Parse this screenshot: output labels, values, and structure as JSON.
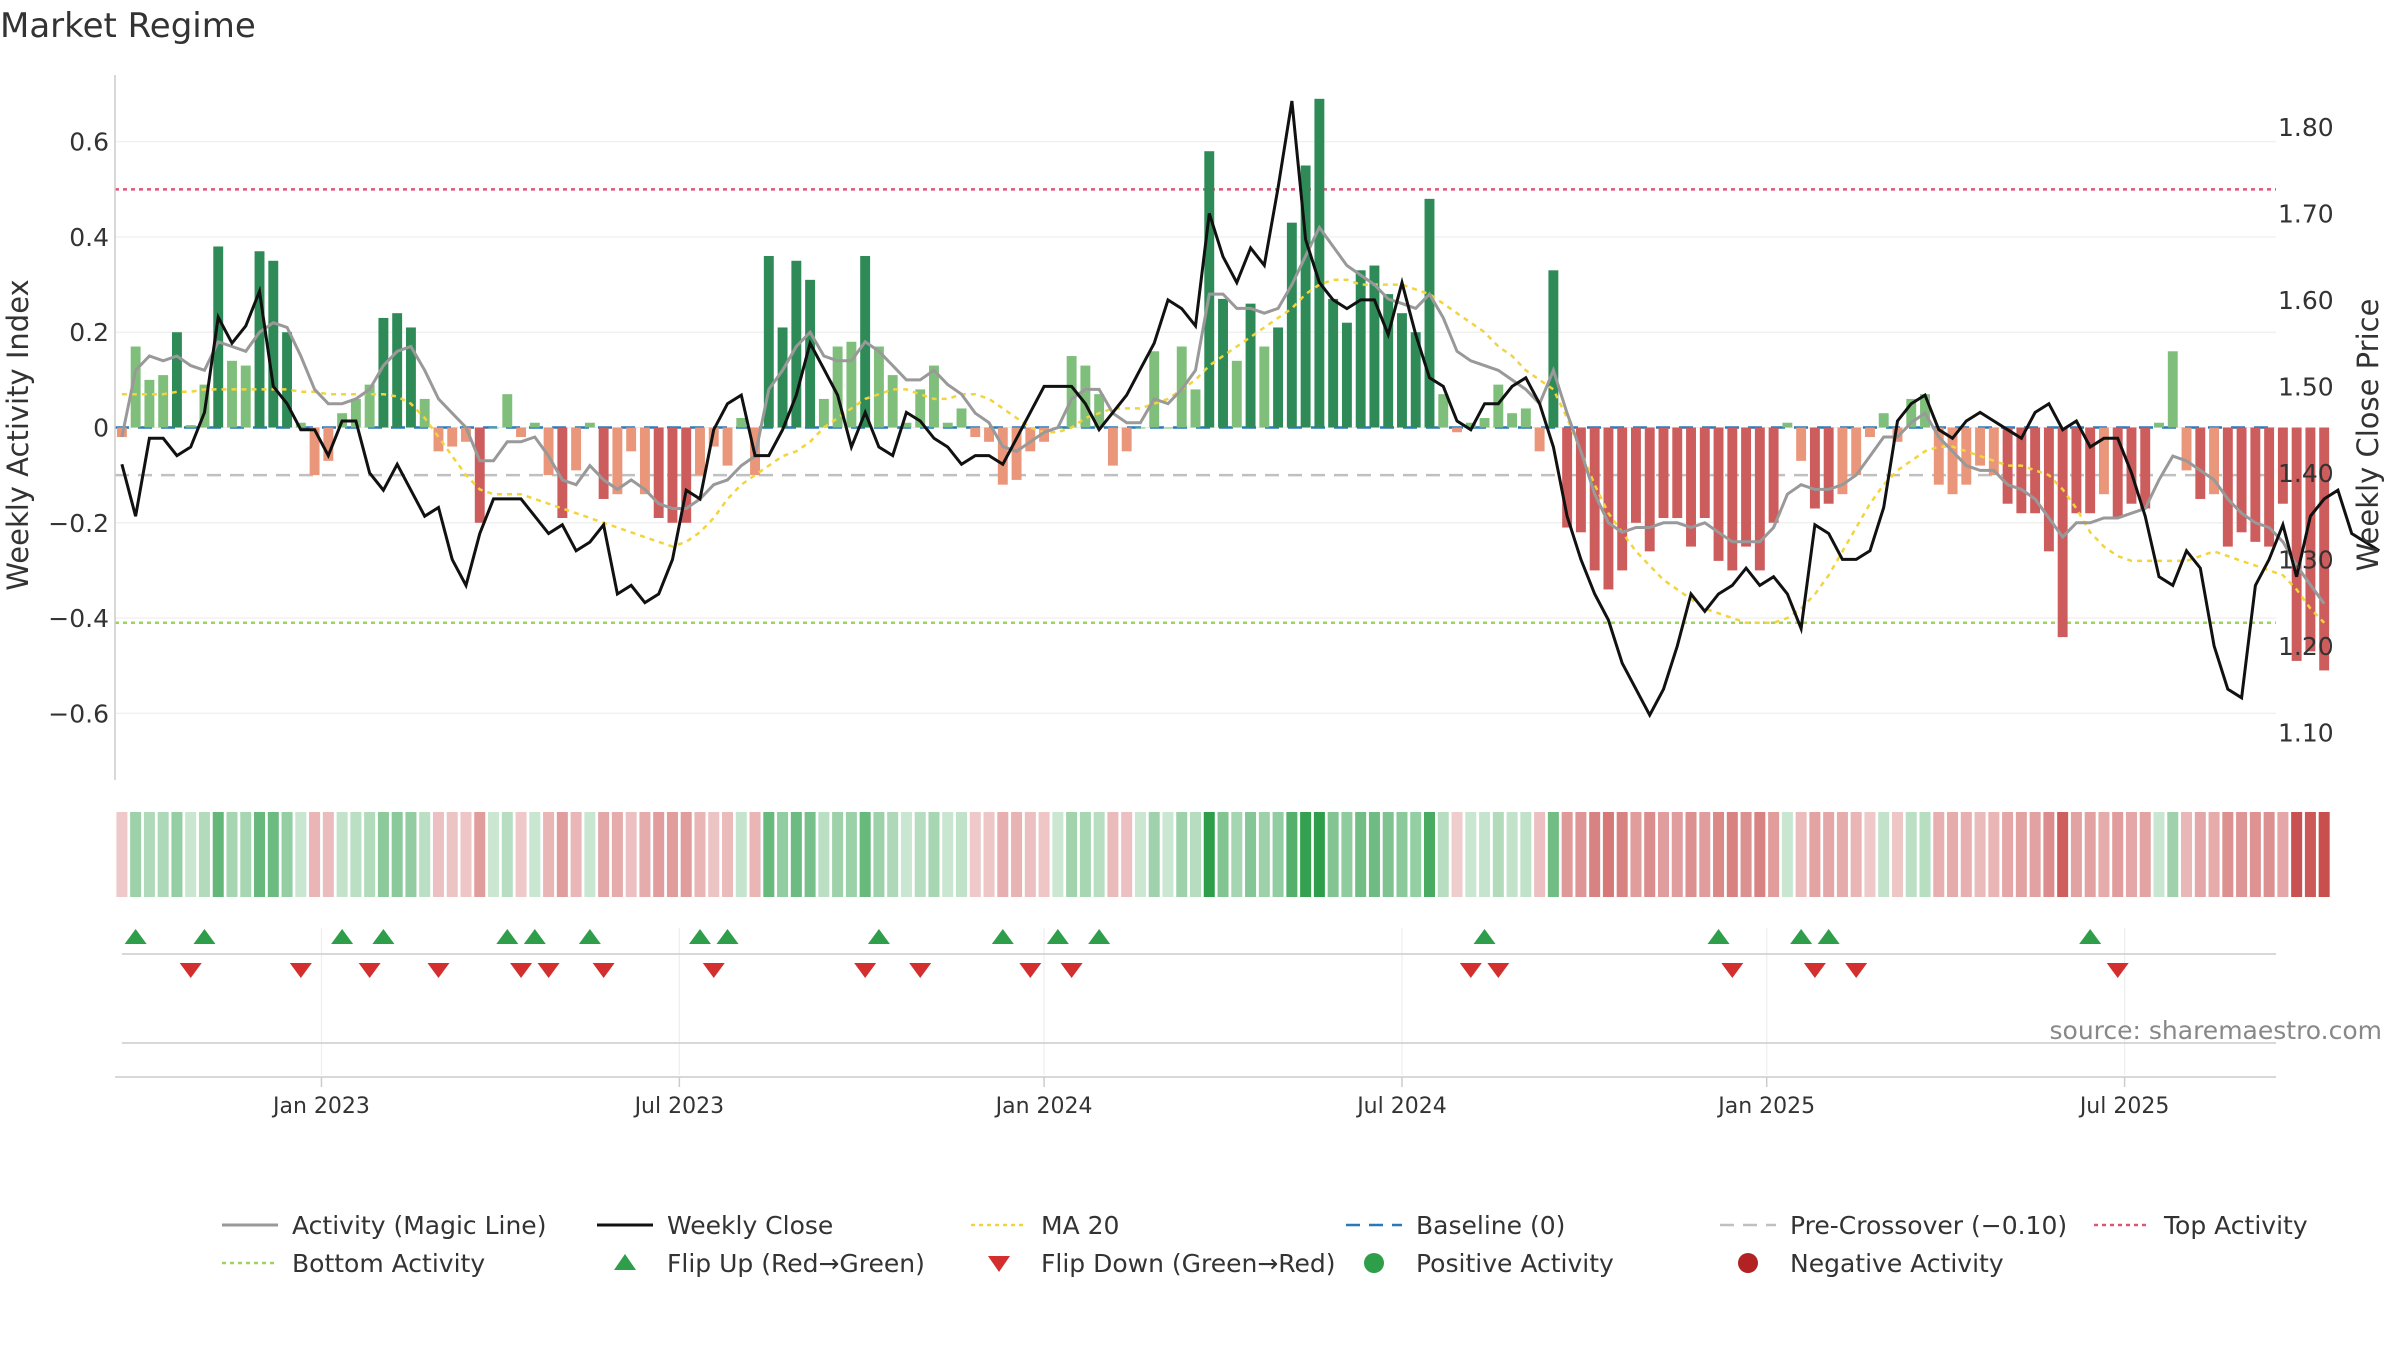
{
  "chart_data": {
    "type": "bar",
    "title": "Market Regime",
    "ylabel": "Weekly Activity Index",
    "y2label": "Weekly Close Price",
    "ylim": [
      -0.74,
      0.74
    ],
    "y2lim": [
      1.045,
      1.86
    ],
    "yticks": [
      0.6,
      0.4,
      0.2,
      0,
      -0.2,
      -0.4,
      -0.6
    ],
    "ytick_labels": [
      "0.6",
      "0.4",
      "0.2",
      "0",
      "−0.2",
      "−0.4",
      "−0.6"
    ],
    "y2ticks": [
      1.8,
      1.7,
      1.6,
      1.5,
      1.4,
      1.3,
      1.2,
      1.1
    ],
    "y2tick_labels": [
      "1.80",
      "1.70",
      "1.60",
      "1.50",
      "1.40",
      "1.30",
      "1.20",
      "1.10"
    ],
    "xlim": [
      0,
      157
    ],
    "xticks": [
      15,
      41,
      67.5,
      93.5,
      120,
      146
    ],
    "xtick_labels": [
      "Jan 2023",
      "Jul 2023",
      "Jan 2024",
      "Jul 2024",
      "Jan 2025",
      "Jul 2025"
    ],
    "grid": true,
    "legend_position": "bottom",
    "source_text": "source: sharemaestro.com",
    "reference_lines": {
      "top_activity": 0.5,
      "bottom_activity": -0.41,
      "pre_crossover": -0.1,
      "baseline": 0
    },
    "activity": [
      -0.02,
      0.17,
      0.1,
      0.11,
      0.2,
      0.005,
      0.09,
      0.38,
      0.14,
      0.13,
      0.37,
      0.35,
      0.2,
      0.01,
      -0.1,
      -0.07,
      0.03,
      0.06,
      0.09,
      0.23,
      0.24,
      0.21,
      0.06,
      -0.05,
      -0.04,
      -0.03,
      -0.2,
      0.0,
      0.07,
      -0.02,
      0.01,
      -0.1,
      -0.19,
      -0.09,
      0.01,
      -0.15,
      -0.14,
      -0.05,
      -0.14,
      -0.19,
      -0.2,
      -0.2,
      -0.1,
      -0.04,
      -0.08,
      0.02,
      -0.1,
      0.36,
      0.21,
      0.35,
      0.31,
      0.06,
      0.17,
      0.18,
      0.36,
      0.17,
      0.11,
      0.01,
      0.08,
      0.13,
      0.01,
      0.04,
      -0.02,
      -0.03,
      -0.12,
      -0.11,
      -0.05,
      -0.03,
      0.0,
      0.15,
      0.13,
      0.07,
      -0.08,
      -0.05,
      0.0,
      0.16,
      0.0,
      0.17,
      0.08,
      0.58,
      0.27,
      0.14,
      0.26,
      0.17,
      0.21,
      0.43,
      0.55,
      0.69,
      0.27,
      0.22,
      0.33,
      0.34,
      0.28,
      0.24,
      0.2,
      0.48,
      0.07,
      -0.01,
      0.01,
      0.02,
      0.09,
      0.03,
      0.04,
      -0.05,
      0.33,
      -0.21,
      -0.22,
      -0.3,
      -0.34,
      -0.3,
      -0.2,
      -0.26,
      -0.19,
      -0.19,
      -0.25,
      -0.19,
      -0.28,
      -0.3,
      -0.25,
      -0.3,
      -0.2,
      0.01,
      -0.07,
      -0.17,
      -0.16,
      -0.14,
      -0.1,
      -0.02,
      0.03,
      -0.03,
      0.06,
      0.07,
      -0.12,
      -0.14,
      -0.12,
      -0.08,
      -0.1,
      -0.16,
      -0.18,
      -0.18,
      -0.26,
      -0.44,
      -0.18,
      -0.18,
      -0.14,
      -0.19,
      -0.16,
      -0.17,
      0.01,
      0.16,
      -0.09,
      -0.15,
      -0.14,
      -0.25,
      -0.22,
      -0.24,
      -0.25,
      -0.16,
      -0.49,
      -0.47,
      -0.51
    ],
    "close": [
      1.41,
      1.35,
      1.44,
      1.44,
      1.42,
      1.43,
      1.47,
      1.58,
      1.55,
      1.57,
      1.61,
      1.5,
      1.48,
      1.45,
      1.45,
      1.42,
      1.46,
      1.46,
      1.4,
      1.38,
      1.41,
      1.38,
      1.35,
      1.36,
      1.3,
      1.27,
      1.33,
      1.37,
      1.37,
      1.37,
      1.35,
      1.33,
      1.34,
      1.31,
      1.32,
      1.34,
      1.26,
      1.27,
      1.25,
      1.26,
      1.3,
      1.38,
      1.37,
      1.45,
      1.48,
      1.49,
      1.42,
      1.42,
      1.45,
      1.49,
      1.55,
      1.52,
      1.49,
      1.43,
      1.47,
      1.43,
      1.42,
      1.47,
      1.46,
      1.44,
      1.43,
      1.41,
      1.42,
      1.42,
      1.41,
      1.44,
      1.47,
      1.5,
      1.5,
      1.5,
      1.48,
      1.45,
      1.47,
      1.49,
      1.52,
      1.55,
      1.6,
      1.59,
      1.57,
      1.7,
      1.65,
      1.62,
      1.66,
      1.64,
      1.73,
      1.83,
      1.67,
      1.62,
      1.6,
      1.59,
      1.6,
      1.6,
      1.56,
      1.62,
      1.56,
      1.51,
      1.5,
      1.46,
      1.45,
      1.48,
      1.48,
      1.5,
      1.51,
      1.48,
      1.43,
      1.35,
      1.3,
      1.26,
      1.23,
      1.18,
      1.15,
      1.12,
      1.15,
      1.2,
      1.26,
      1.24,
      1.26,
      1.27,
      1.29,
      1.27,
      1.28,
      1.26,
      1.22,
      1.34,
      1.33,
      1.3,
      1.3,
      1.31,
      1.36,
      1.46,
      1.48,
      1.49,
      1.45,
      1.44,
      1.46,
      1.47,
      1.46,
      1.45,
      1.44,
      1.47,
      1.48,
      1.45,
      1.46,
      1.43,
      1.44,
      1.44,
      1.4,
      1.35,
      1.28,
      1.27,
      1.31,
      1.29,
      1.2,
      1.15,
      1.14,
      1.27,
      1.3,
      1.34,
      1.28,
      1.35,
      1.37,
      1.38,
      1.33,
      1.32,
      1.31
    ],
    "magic_line": [
      -0.02,
      0.12,
      0.15,
      0.14,
      0.15,
      0.13,
      0.12,
      0.18,
      0.17,
      0.16,
      0.2,
      0.22,
      0.21,
      0.15,
      0.08,
      0.05,
      0.05,
      0.06,
      0.08,
      0.13,
      0.16,
      0.17,
      0.12,
      0.06,
      0.03,
      0.0,
      -0.07,
      -0.07,
      -0.03,
      -0.03,
      -0.02,
      -0.06,
      -0.11,
      -0.12,
      -0.08,
      -0.11,
      -0.13,
      -0.11,
      -0.13,
      -0.16,
      -0.17,
      -0.17,
      -0.15,
      -0.12,
      -0.11,
      -0.08,
      -0.06,
      0.08,
      0.12,
      0.17,
      0.2,
      0.15,
      0.14,
      0.14,
      0.18,
      0.16,
      0.13,
      0.1,
      0.1,
      0.12,
      0.09,
      0.07,
      0.03,
      0.01,
      -0.04,
      -0.05,
      -0.03,
      -0.01,
      0.0,
      0.06,
      0.08,
      0.08,
      0.03,
      0.01,
      0.01,
      0.06,
      0.05,
      0.08,
      0.12,
      0.28,
      0.28,
      0.25,
      0.25,
      0.24,
      0.25,
      0.3,
      0.36,
      0.42,
      0.38,
      0.34,
      0.32,
      0.3,
      0.27,
      0.26,
      0.25,
      0.28,
      0.23,
      0.16,
      0.14,
      0.13,
      0.12,
      0.1,
      0.08,
      0.05,
      0.12,
      0.03,
      -0.05,
      -0.14,
      -0.2,
      -0.22,
      -0.21,
      -0.21,
      -0.2,
      -0.2,
      -0.21,
      -0.2,
      -0.22,
      -0.24,
      -0.24,
      -0.24,
      -0.21,
      -0.14,
      -0.12,
      -0.13,
      -0.13,
      -0.12,
      -0.1,
      -0.06,
      -0.02,
      -0.02,
      0.01,
      0.03,
      -0.02,
      -0.05,
      -0.08,
      -0.09,
      -0.09,
      -0.12,
      -0.13,
      -0.15,
      -0.19,
      -0.23,
      -0.2,
      -0.2,
      -0.19,
      -0.19,
      -0.18,
      -0.17,
      -0.11,
      -0.06,
      -0.07,
      -0.09,
      -0.11,
      -0.15,
      -0.18,
      -0.2,
      -0.21,
      -0.24,
      -0.29,
      -0.33,
      -0.37
    ],
    "ma20": [
      0.07,
      0.07,
      0.07,
      0.07,
      0.075,
      0.075,
      0.08,
      0.08,
      0.08,
      0.08,
      0.08,
      0.08,
      0.08,
      0.075,
      0.075,
      0.07,
      0.07,
      0.07,
      0.07,
      0.07,
      0.065,
      0.05,
      0.02,
      -0.02,
      -0.06,
      -0.1,
      -0.13,
      -0.14,
      -0.14,
      -0.14,
      -0.15,
      -0.16,
      -0.17,
      -0.18,
      -0.19,
      -0.2,
      -0.21,
      -0.22,
      -0.23,
      -0.24,
      -0.25,
      -0.24,
      -0.22,
      -0.19,
      -0.15,
      -0.12,
      -0.1,
      -0.08,
      -0.06,
      -0.05,
      -0.03,
      0.0,
      0.02,
      0.04,
      0.06,
      0.07,
      0.08,
      0.08,
      0.07,
      0.06,
      0.06,
      0.07,
      0.07,
      0.06,
      0.04,
      0.02,
      0.0,
      -0.01,
      -0.01,
      0.0,
      0.02,
      0.03,
      0.04,
      0.04,
      0.04,
      0.05,
      0.06,
      0.08,
      0.1,
      0.13,
      0.15,
      0.17,
      0.19,
      0.21,
      0.23,
      0.25,
      0.28,
      0.3,
      0.31,
      0.31,
      0.3,
      0.3,
      0.3,
      0.3,
      0.29,
      0.28,
      0.26,
      0.24,
      0.22,
      0.2,
      0.17,
      0.15,
      0.12,
      0.1,
      0.08,
      0.02,
      -0.05,
      -0.12,
      -0.18,
      -0.22,
      -0.26,
      -0.29,
      -0.32,
      -0.34,
      -0.36,
      -0.38,
      -0.39,
      -0.4,
      -0.41,
      -0.41,
      -0.41,
      -0.4,
      -0.38,
      -0.35,
      -0.31,
      -0.26,
      -0.21,
      -0.16,
      -0.12,
      -0.09,
      -0.07,
      -0.05,
      -0.04,
      -0.04,
      -0.05,
      -0.06,
      -0.07,
      -0.08,
      -0.08,
      -0.09,
      -0.1,
      -0.13,
      -0.17,
      -0.22,
      -0.25,
      -0.27,
      -0.28,
      -0.28,
      -0.28,
      -0.28,
      -0.28,
      -0.27,
      -0.26,
      -0.27,
      -0.28,
      -0.29,
      -0.3,
      -0.31,
      -0.34,
      -0.38,
      -0.41
    ],
    "flip_up": [
      1,
      6,
      16,
      19,
      28,
      30,
      34,
      42,
      44,
      55,
      64,
      68,
      71,
      99,
      116,
      122,
      124,
      143
    ],
    "flip_down": [
      5,
      13,
      18,
      23,
      29,
      31,
      35,
      43,
      54,
      58,
      66,
      69,
      98,
      100,
      117,
      123,
      126,
      145
    ],
    "legend": [
      {
        "label": "Activity (Magic Line)",
        "kind": "line",
        "color": "#999999"
      },
      {
        "label": "Weekly Close",
        "kind": "line",
        "color": "#111111"
      },
      {
        "label": "MA 20",
        "kind": "dotted",
        "color": "#f2d43d"
      },
      {
        "label": "Baseline (0)",
        "kind": "dashed",
        "color": "#2a78b8"
      },
      {
        "label": "Pre-Crossover (−0.10)",
        "kind": "dashed",
        "color": "#c0c0c0"
      },
      {
        "label": "Top Activity",
        "kind": "dotted",
        "color": "#e0557a"
      },
      {
        "label": "Bottom Activity",
        "kind": "dotted",
        "color": "#9fd35f"
      },
      {
        "label": "Flip Up (Red→Green)",
        "kind": "triangle-up",
        "color": "#2e9e4a"
      },
      {
        "label": "Flip Down (Green→Red)",
        "kind": "triangle-down",
        "color": "#d32f2f"
      },
      {
        "label": "Positive Activity",
        "kind": "dot",
        "color": "#2e9e4a"
      },
      {
        "label": "Negative Activity",
        "kind": "dot",
        "color": "#b22222"
      }
    ],
    "colors": {
      "strong_positive": "#2e8b57",
      "weak_positive": "#7fbf7b",
      "strong_negative": "#cd5c5c",
      "weak_negative": "#e9967a"
    }
  }
}
